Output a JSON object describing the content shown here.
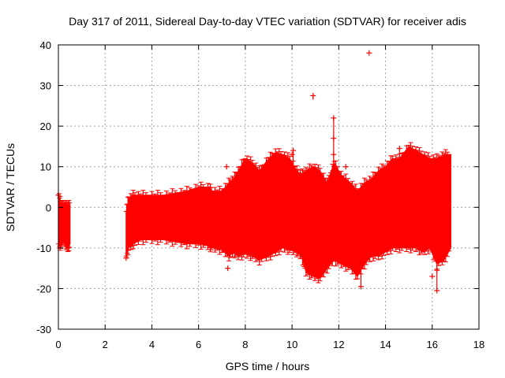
{
  "chart_data": {
    "type": "scatter",
    "title": "Day 317 of 2011, Sidereal Day-to-day VTEC variation (SDTVAR) for receiver adis",
    "xlabel": "GPS time / hours",
    "ylabel": "SDTVAR / TECUs",
    "xlim": [
      0,
      18
    ],
    "ylim": [
      -30,
      40
    ],
    "xticks": [
      0,
      2,
      4,
      6,
      8,
      10,
      12,
      14,
      16,
      18
    ],
    "yticks": [
      -30,
      -20,
      -10,
      0,
      10,
      20,
      30,
      40
    ],
    "xtick_labels": [
      "0",
      "2",
      "4",
      "6",
      "8",
      "10",
      "12",
      "14",
      "16",
      "18"
    ],
    "ytick_labels": [
      "-30",
      "-20",
      "-10",
      "0",
      "10",
      "20",
      "30",
      "40"
    ],
    "grid": true,
    "marker": "+",
    "series_color": "#ff0000",
    "envelope": {
      "description": "dense band of points, upper/lower bounds in TECU vs GPS hours",
      "segments": [
        {
          "x": [
            0.0,
            0.1,
            0.2,
            0.3,
            0.4,
            0.5
          ],
          "upper": [
            3.0,
            1.0,
            0.5,
            0.5,
            0.5,
            0.5
          ],
          "lower": [
            -9.0,
            -9.5,
            -8.0,
            -9.0,
            -10.0,
            -9.0
          ]
        },
        {
          "x": [
            2.9,
            3.0,
            3.2,
            3.5,
            4.0,
            4.5,
            5.0,
            5.5,
            6.0,
            6.4,
            6.6,
            7.0,
            7.3,
            7.5,
            7.7,
            8.0,
            8.3,
            8.6,
            9.0,
            9.3,
            9.6,
            9.9,
            10.2,
            10.4,
            10.6,
            10.9,
            11.2,
            11.5,
            11.8,
            12.1,
            12.5,
            12.8,
            13.1,
            13.4,
            13.7,
            14.0,
            14.3,
            14.6,
            15.0,
            15.3,
            15.6,
            15.9,
            16.2,
            16.5,
            16.8
          ],
          "upper": [
            -1.0,
            2.0,
            3.0,
            3.0,
            3.0,
            3.0,
            3.5,
            4.0,
            5.0,
            5.0,
            4.0,
            4.0,
            6.0,
            7.0,
            9.0,
            12.0,
            11.0,
            9.0,
            12.0,
            13.5,
            13.0,
            12.0,
            9.0,
            8.0,
            9.0,
            10.0,
            9.0,
            6.0,
            11.0,
            8.0,
            6.0,
            4.0,
            6.0,
            7.0,
            9.0,
            10.0,
            12.0,
            12.0,
            15.0,
            14.0,
            13.0,
            12.0,
            12.0,
            13.0,
            13.0
          ],
          "lower": [
            -12.0,
            -10.0,
            -9.0,
            -8.0,
            -8.0,
            -8.0,
            -8.5,
            -9.0,
            -9.0,
            -9.5,
            -10.0,
            -10.5,
            -12.0,
            -11.0,
            -12.0,
            -11.5,
            -12.0,
            -13.0,
            -12.0,
            -11.0,
            -10.0,
            -10.5,
            -11.0,
            -12.0,
            -16.0,
            -17.0,
            -17.5,
            -15.0,
            -13.0,
            -14.0,
            -15.0,
            -17.0,
            -14.0,
            -12.0,
            -12.0,
            -11.0,
            -10.0,
            -10.0,
            -10.0,
            -10.0,
            -11.0,
            -10.0,
            -14.0,
            -13.0,
            -10.0
          ]
        }
      ]
    },
    "points": [
      {
        "x": 13.3,
        "y": 38.0
      },
      {
        "x": 10.9,
        "y": 27.5
      },
      {
        "x": 11.78,
        "y": 22.0
      },
      {
        "x": 11.78,
        "y": 17.0
      },
      {
        "x": 11.78,
        "y": 13.0
      },
      {
        "x": 12.95,
        "y": -19.5
      },
      {
        "x": 16.2,
        "y": -20.5
      },
      {
        "x": 16.2,
        "y": -15.5
      },
      {
        "x": 14.6,
        "y": 14.5
      },
      {
        "x": 10.05,
        "y": 14.0
      },
      {
        "x": 10.0,
        "y": 13.0
      },
      {
        "x": 7.2,
        "y": 10.0
      },
      {
        "x": 12.3,
        "y": 10.0
      },
      {
        "x": 11.75,
        "y": 9.0
      },
      {
        "x": 7.25,
        "y": -15.0
      },
      {
        "x": 16.0,
        "y": -17.0
      },
      {
        "x": 0.0,
        "y": 3.0
      },
      {
        "x": 2.9,
        "y": -12.5
      },
      {
        "x": 8.1,
        "y": 9.5
      }
    ]
  }
}
